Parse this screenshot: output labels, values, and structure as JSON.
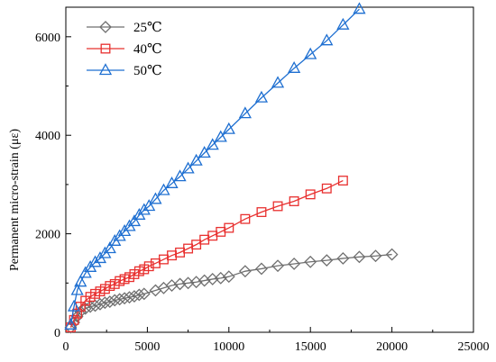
{
  "chart_data": {
    "type": "line",
    "xlabel": "",
    "ylabel": "Permanent micro-strain (με)",
    "xlim": [
      0,
      25000
    ],
    "ylim": [
      0,
      6600
    ],
    "x_ticks": [
      0,
      5000,
      10000,
      15000,
      20000,
      25000
    ],
    "y_ticks": [
      0,
      2000,
      4000,
      6000
    ],
    "grid": false,
    "legend_position": "top-left",
    "series": [
      {
        "name": "25℃",
        "color": "#6f6f6f",
        "marker": "diamond",
        "x": [
          300,
          500,
          700,
          900,
          1200,
          1500,
          1800,
          2100,
          2400,
          2700,
          3000,
          3300,
          3600,
          3900,
          4200,
          4500,
          4800,
          5500,
          6000,
          6500,
          7000,
          7500,
          8000,
          8500,
          9000,
          9500,
          10000,
          11000,
          12000,
          13000,
          14000,
          15000,
          16000,
          17000,
          18000,
          19000,
          20000
        ],
        "y": [
          100,
          200,
          320,
          420,
          480,
          520,
          540,
          570,
          600,
          620,
          650,
          670,
          690,
          710,
          730,
          760,
          780,
          850,
          900,
          950,
          980,
          1000,
          1020,
          1050,
          1080,
          1100,
          1130,
          1240,
          1290,
          1350,
          1390,
          1430,
          1460,
          1500,
          1530,
          1550,
          1580
        ]
      },
      {
        "name": "40℃",
        "color": "#e8302f",
        "marker": "square",
        "x": [
          300,
          500,
          700,
          900,
          1200,
          1500,
          1800,
          2100,
          2400,
          2700,
          3000,
          3300,
          3600,
          3900,
          4200,
          4500,
          4800,
          5100,
          5500,
          6000,
          6500,
          7000,
          7500,
          8000,
          8500,
          9000,
          9500,
          10000,
          11000,
          12000,
          13000,
          14000,
          15000,
          16000,
          17000
        ],
        "y": [
          100,
          250,
          380,
          520,
          640,
          720,
          780,
          830,
          880,
          940,
          980,
          1040,
          1080,
          1120,
          1180,
          1240,
          1280,
          1340,
          1400,
          1480,
          1560,
          1620,
          1700,
          1780,
          1880,
          1960,
          2040,
          2120,
          2300,
          2440,
          2560,
          2660,
          2800,
          2920,
          3080
        ]
      },
      {
        "name": "50℃",
        "color": "#1e6fd1",
        "marker": "triangle",
        "x": [
          300,
          500,
          700,
          900,
          1200,
          1500,
          1800,
          2100,
          2400,
          2700,
          3000,
          3300,
          3600,
          3900,
          4200,
          4500,
          4800,
          5100,
          5500,
          6000,
          6500,
          7000,
          7500,
          8000,
          8500,
          9000,
          9500,
          10000,
          11000,
          12000,
          13000,
          14000,
          15000,
          16000,
          17000,
          18000
        ],
        "y": [
          150,
          520,
          850,
          1020,
          1200,
          1320,
          1420,
          1500,
          1600,
          1700,
          1850,
          1950,
          2050,
          2150,
          2250,
          2380,
          2480,
          2560,
          2700,
          2880,
          3020,
          3160,
          3320,
          3480,
          3640,
          3800,
          3960,
          4120,
          4440,
          4760,
          5060,
          5360,
          5640,
          5920,
          6240,
          6560
        ]
      }
    ]
  }
}
